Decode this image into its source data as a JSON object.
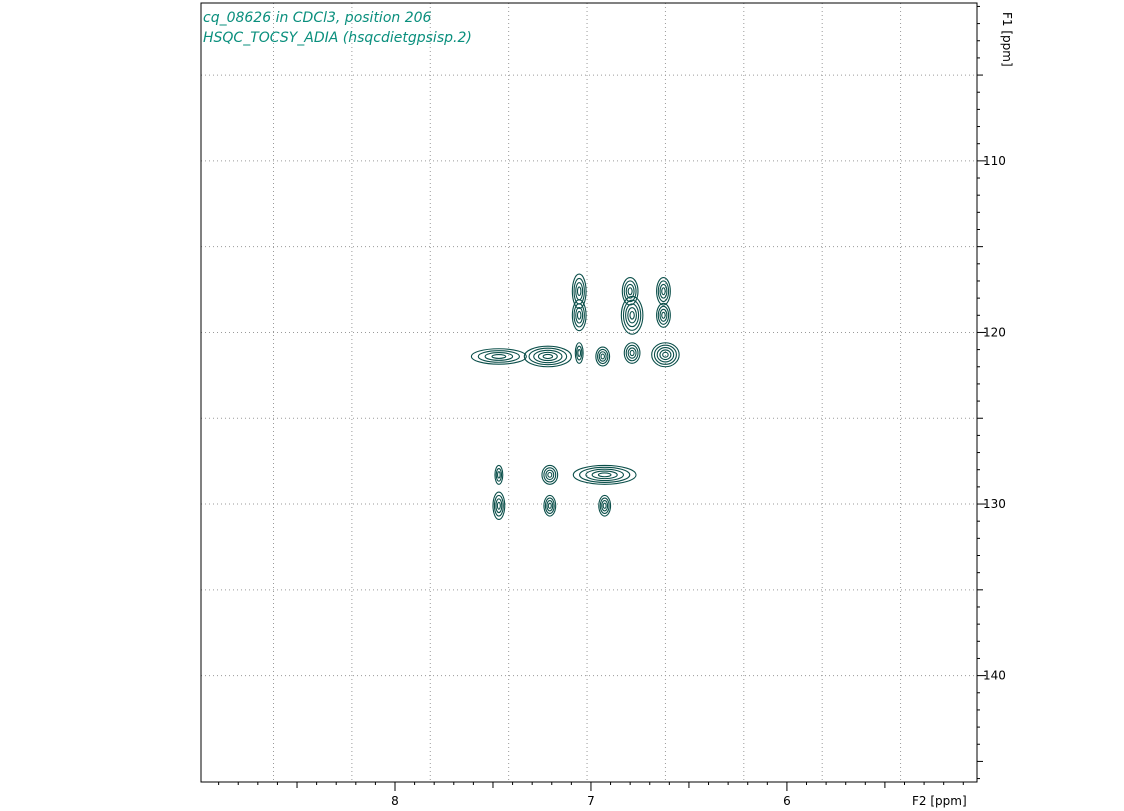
{
  "header": {
    "line1": "cq_08626 in CDCl3, position 206",
    "line2": "HSQC_TOCSY_ADIA (hsqcdietgpsisp.2)"
  },
  "chart_data": {
    "type": "heatmap",
    "title": "cq_08626 in CDCl3, position 206",
    "subtitle": "HSQC_TOCSY_ADIA (hsqcdietgpsisp.2)",
    "xlabel": "F2 [ppm]",
    "ylabel": "F1 [ppm]",
    "xlim": [
      8.99,
      5.03
    ],
    "ylim": [
      100.8,
      146.2
    ],
    "x_reversed": true,
    "y_reversed": true,
    "x_ticks": [
      8,
      7,
      6
    ],
    "y_ticks": [
      110,
      120,
      130,
      140
    ],
    "x_grid": [
      8.62,
      8.22,
      7.82,
      7.42,
      7.02,
      6.62,
      6.22,
      5.82,
      5.42
    ],
    "y_grid": [
      105,
      110,
      115,
      120,
      125,
      130,
      135,
      140
    ],
    "grid": true,
    "contour_color": "#0b4f4a",
    "text_color": "#0a8f7d",
    "peaks": [
      {
        "x": 7.06,
        "y": 117.6,
        "wx": 0.035,
        "wy": 1.0,
        "levels": 4
      },
      {
        "x": 7.06,
        "y": 119.0,
        "wx": 0.035,
        "wy": 0.9,
        "levels": 4
      },
      {
        "x": 6.8,
        "y": 117.6,
        "wx": 0.04,
        "wy": 0.8,
        "levels": 4
      },
      {
        "x": 6.79,
        "y": 119.0,
        "wx": 0.055,
        "wy": 1.1,
        "levels": 5
      },
      {
        "x": 6.63,
        "y": 117.6,
        "wx": 0.035,
        "wy": 0.8,
        "levels": 4
      },
      {
        "x": 6.63,
        "y": 119.0,
        "wx": 0.035,
        "wy": 0.7,
        "levels": 4
      },
      {
        "x": 7.47,
        "y": 121.4,
        "wx": 0.14,
        "wy": 0.45,
        "levels": 4
      },
      {
        "x": 7.22,
        "y": 121.4,
        "wx": 0.12,
        "wy": 0.6,
        "levels": 5
      },
      {
        "x": 7.06,
        "y": 121.2,
        "wx": 0.02,
        "wy": 0.6,
        "levels": 3
      },
      {
        "x": 6.94,
        "y": 121.4,
        "wx": 0.035,
        "wy": 0.55,
        "levels": 4
      },
      {
        "x": 6.79,
        "y": 121.2,
        "wx": 0.04,
        "wy": 0.6,
        "levels": 4
      },
      {
        "x": 6.62,
        "y": 121.3,
        "wx": 0.07,
        "wy": 0.7,
        "levels": 5
      },
      {
        "x": 7.47,
        "y": 128.3,
        "wx": 0.02,
        "wy": 0.55,
        "levels": 3
      },
      {
        "x": 7.21,
        "y": 128.3,
        "wx": 0.04,
        "wy": 0.55,
        "levels": 4
      },
      {
        "x": 6.93,
        "y": 128.3,
        "wx": 0.16,
        "wy": 0.55,
        "levels": 5
      },
      {
        "x": 7.47,
        "y": 130.1,
        "wx": 0.03,
        "wy": 0.8,
        "levels": 4
      },
      {
        "x": 7.21,
        "y": 130.1,
        "wx": 0.03,
        "wy": 0.6,
        "levels": 4
      },
      {
        "x": 6.93,
        "y": 130.1,
        "wx": 0.03,
        "wy": 0.6,
        "levels": 4
      }
    ]
  }
}
